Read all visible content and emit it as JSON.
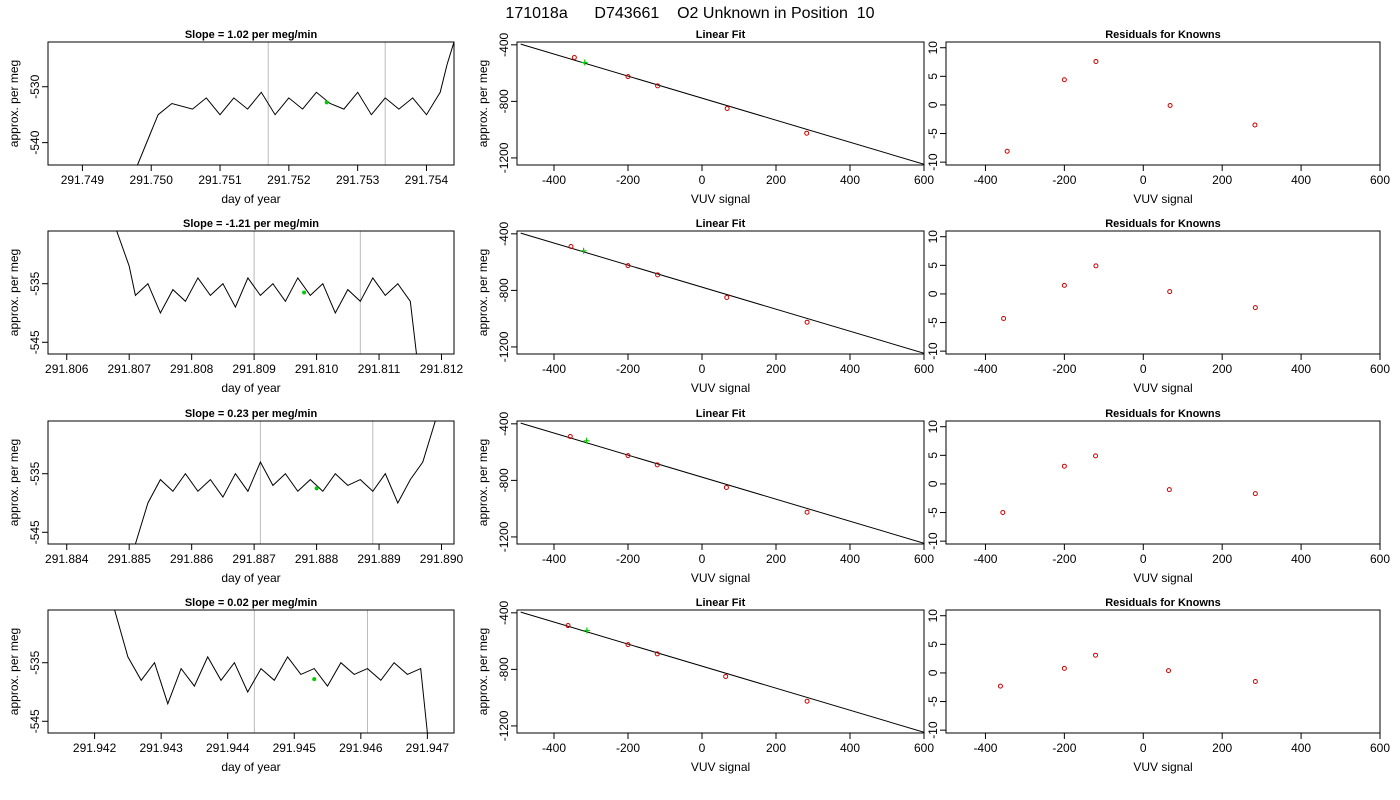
{
  "page_title": "171018a      D743661    O2 Unknown in Position  10",
  "colors": {
    "axis": "#000000",
    "trace": "#000000",
    "vline": "#bbbbbb",
    "known_point": "#cc0000",
    "unknown_point": "#00cc00"
  },
  "chart_data": [
    {
      "type": "line",
      "title": "Slope =  1.02  per meg/min",
      "xlabel": "day of year",
      "ylabel": "approx. per meg",
      "xlim": [
        291.7485,
        291.7544
      ],
      "ylim": [
        -544,
        -522
      ],
      "xticks": [
        "291.749",
        "291.750",
        "291.751",
        "291.752",
        "291.753",
        "291.754"
      ],
      "yticks": [
        "-530",
        "-540"
      ],
      "vlines": [
        291.7517,
        291.7534
      ],
      "point": {
        "x": 291.75255,
        "y": -532.8
      },
      "series": [
        {
          "x": [
            291.7498,
            291.75,
            291.7501,
            291.7503,
            291.7506,
            291.7508,
            291.751,
            291.7512,
            291.7514,
            291.7516,
            291.7518,
            291.752,
            291.7522,
            291.7524,
            291.7526,
            291.7528,
            291.753,
            291.7532,
            291.7534,
            291.7536,
            291.7538,
            291.754,
            291.7542,
            291.7543,
            291.7544
          ],
          "y": [
            -544,
            -538,
            -535,
            -533,
            -534,
            -532,
            -535,
            -532,
            -534,
            -531,
            -535,
            -532,
            -534,
            -531,
            -533,
            -534,
            -531,
            -535,
            -532,
            -534,
            -532,
            -535,
            -531,
            -526,
            -522
          ]
        }
      ]
    },
    {
      "type": "scatter",
      "title": "Linear Fit",
      "xlabel": "VUV signal",
      "ylabel": "approx. per meg",
      "xlim": [
        -500,
        600
      ],
      "ylim": [
        -1250,
        -380
      ],
      "xticks": [
        "-400",
        "-200",
        "0",
        "200",
        "400",
        "600"
      ],
      "yticks": [
        "-400",
        "-800",
        "-1200"
      ],
      "knowns": {
        "x": [
          -345,
          -200,
          -120,
          68,
          283
        ],
        "y": [
          -490,
          -625,
          -690,
          -850,
          -1025
        ]
      },
      "unknown": {
        "x": -317,
        "y": -525
      },
      "fit_line": {
        "x": [
          -490,
          600
        ],
        "y": [
          -395,
          -1245
        ]
      }
    },
    {
      "type": "scatter",
      "title": "Residuals for Knowns",
      "xlabel": "VUV signal",
      "ylabel": "",
      "xlim": [
        -500,
        600
      ],
      "ylim": [
        -10.5,
        11
      ],
      "xticks": [
        "-400",
        "-200",
        "0",
        "200",
        "400",
        "600"
      ],
      "yticks": [
        "10",
        "5",
        "0",
        "-5",
        "-10"
      ],
      "points": {
        "x": [
          -345,
          -200,
          -120,
          68,
          283
        ],
        "y": [
          -8.1,
          4.4,
          7.6,
          -0.1,
          -3.5
        ]
      }
    },
    {
      "type": "line",
      "title": "Slope =  -1.21  per meg/min",
      "xlabel": "day of year",
      "ylabel": "approx. per meg",
      "xlim": [
        291.8057,
        291.8122
      ],
      "ylim": [
        -547,
        -526
      ],
      "xticks": [
        "291.806",
        "291.807",
        "291.808",
        "291.809",
        "291.810",
        "291.811",
        "291.812"
      ],
      "yticks": [
        "-535",
        "-545"
      ],
      "vlines": [
        291.809,
        291.8107
      ],
      "point": {
        "x": 291.8098,
        "y": -536.5
      },
      "series": [
        {
          "x": [
            291.8068,
            291.807,
            291.8071,
            291.8073,
            291.8075,
            291.8077,
            291.8079,
            291.8081,
            291.8083,
            291.8085,
            291.8087,
            291.8089,
            291.8091,
            291.8093,
            291.8095,
            291.8097,
            291.8099,
            291.8101,
            291.8103,
            291.8105,
            291.8107,
            291.8109,
            291.8111,
            291.8113,
            291.8115,
            291.8116
          ],
          "y": [
            -526,
            -532,
            -537,
            -535,
            -540,
            -536,
            -538,
            -534,
            -537,
            -535,
            -539,
            -534,
            -537,
            -535,
            -538,
            -534,
            -537,
            -535,
            -540,
            -536,
            -538,
            -534,
            -537,
            -535,
            -538,
            -547
          ]
        }
      ]
    },
    {
      "type": "scatter",
      "title": "Linear Fit",
      "xlabel": "VUV signal",
      "ylabel": "approx. per meg",
      "xlim": [
        -500,
        600
      ],
      "ylim": [
        -1250,
        -380
      ],
      "xticks": [
        "-400",
        "-200",
        "0",
        "200",
        "400",
        "600"
      ],
      "yticks": [
        "-400",
        "-800",
        "-1200"
      ],
      "knowns": {
        "x": [
          -354,
          -200,
          -120,
          67,
          284
        ],
        "y": [
          -490,
          -625,
          -690,
          -850,
          -1025
        ]
      },
      "unknown": {
        "x": -320,
        "y": -520
      },
      "fit_line": {
        "x": [
          -490,
          600
        ],
        "y": [
          -395,
          -1245
        ]
      }
    },
    {
      "type": "scatter",
      "title": "Residuals for Knowns",
      "xlabel": "VUV signal",
      "ylabel": "",
      "xlim": [
        -500,
        600
      ],
      "ylim": [
        -10.5,
        11
      ],
      "xticks": [
        "-400",
        "-200",
        "0",
        "200",
        "400",
        "600"
      ],
      "yticks": [
        "10",
        "5",
        "0",
        "-5",
        "-10"
      ],
      "points": {
        "x": [
          -354,
          -200,
          -120,
          67,
          284
        ],
        "y": [
          -4.3,
          1.5,
          4.9,
          0.4,
          -2.4
        ]
      }
    },
    {
      "type": "line",
      "title": "Slope =  0.23  per meg/min",
      "xlabel": "day of year",
      "ylabel": "approx. per meg",
      "xlim": [
        291.8837,
        291.8902
      ],
      "ylim": [
        -547,
        -526
      ],
      "xticks": [
        "291.884",
        "291.885",
        "291.886",
        "291.887",
        "291.888",
        "291.889",
        "291.890"
      ],
      "yticks": [
        "-535",
        "-545"
      ],
      "vlines": [
        291.8871,
        291.8889
      ],
      "point": {
        "x": 291.888,
        "y": -537.5
      },
      "series": [
        {
          "x": [
            291.8851,
            291.8853,
            291.8855,
            291.8857,
            291.8859,
            291.8861,
            291.8863,
            291.8865,
            291.8867,
            291.8869,
            291.8871,
            291.8873,
            291.8875,
            291.8877,
            291.8879,
            291.8881,
            291.8883,
            291.8885,
            291.8887,
            291.8889,
            291.8891,
            291.8893,
            291.8895,
            291.8897,
            291.8899
          ],
          "y": [
            -547,
            -540,
            -536,
            -538,
            -535,
            -538,
            -536,
            -539,
            -535,
            -538,
            -533,
            -537,
            -535,
            -538,
            -536,
            -538,
            -535,
            -537,
            -536,
            -538,
            -535,
            -540,
            -536,
            -533,
            -526
          ]
        }
      ]
    },
    {
      "type": "scatter",
      "title": "Linear Fit",
      "xlabel": "VUV signal",
      "ylabel": "approx. per meg",
      "xlim": [
        -500,
        600
      ],
      "ylim": [
        -1250,
        -380
      ],
      "xticks": [
        "-400",
        "-200",
        "0",
        "200",
        "400",
        "600"
      ],
      "yticks": [
        "-400",
        "-800",
        "-1200"
      ],
      "knowns": {
        "x": [
          -356,
          -200,
          -121,
          66,
          284
        ],
        "y": [
          -490,
          -625,
          -690,
          -850,
          -1025
        ]
      },
      "unknown": {
        "x": -312,
        "y": -520
      },
      "fit_line": {
        "x": [
          -490,
          600
        ],
        "y": [
          -395,
          -1245
        ]
      }
    },
    {
      "type": "scatter",
      "title": "Residuals for Knowns",
      "xlabel": "VUV signal",
      "ylabel": "",
      "xlim": [
        -500,
        600
      ],
      "ylim": [
        -10.5,
        11
      ],
      "xticks": [
        "-400",
        "-200",
        "0",
        "200",
        "400",
        "600"
      ],
      "yticks": [
        "10",
        "5",
        "0",
        "-5",
        "-10"
      ],
      "points": {
        "x": [
          -356,
          -200,
          -121,
          66,
          284
        ],
        "y": [
          -5,
          3.1,
          4.9,
          -1,
          -1.7
        ]
      }
    },
    {
      "type": "line",
      "title": "Slope =  0.02  per meg/min",
      "xlabel": "day of year",
      "ylabel": "approx. per meg",
      "xlim": [
        291.9413,
        291.9474
      ],
      "ylim": [
        -547,
        -526
      ],
      "xticks": [
        "291.942",
        "291.943",
        "291.944",
        "291.945",
        "291.946",
        "291.947"
      ],
      "yticks": [
        "-535",
        "-545"
      ],
      "vlines": [
        291.9444,
        291.9461
      ],
      "point": {
        "x": 291.9453,
        "y": -537.8
      },
      "series": [
        {
          "x": [
            291.9423,
            291.9425,
            291.9427,
            291.9429,
            291.9431,
            291.9433,
            291.9435,
            291.9437,
            291.9439,
            291.9441,
            291.9443,
            291.9445,
            291.9447,
            291.9449,
            291.9451,
            291.9453,
            291.9455,
            291.9457,
            291.9459,
            291.9461,
            291.9463,
            291.9465,
            291.9467,
            291.9469,
            291.947
          ],
          "y": [
            -526,
            -534,
            -538,
            -535,
            -542,
            -536,
            -539,
            -534,
            -538,
            -535,
            -540,
            -536,
            -538,
            -534,
            -537,
            -536,
            -539,
            -535,
            -537,
            -536,
            -538,
            -535,
            -537,
            -536,
            -547
          ]
        }
      ]
    },
    {
      "type": "scatter",
      "title": "Linear Fit",
      "xlabel": "VUV signal",
      "ylabel": "approx. per meg",
      "xlim": [
        -500,
        600
      ],
      "ylim": [
        -1250,
        -380
      ],
      "xticks": [
        "-400",
        "-200",
        "0",
        "200",
        "400",
        "600"
      ],
      "yticks": [
        "-400",
        "-800",
        "-1200"
      ],
      "knowns": {
        "x": [
          -362,
          -200,
          -121,
          64,
          284
        ],
        "y": [
          -490,
          -625,
          -690,
          -850,
          -1025
        ]
      },
      "unknown": {
        "x": -311,
        "y": -525
      },
      "fit_line": {
        "x": [
          -490,
          600
        ],
        "y": [
          -395,
          -1245
        ]
      }
    },
    {
      "type": "scatter",
      "title": "Residuals for Knowns",
      "xlabel": "VUV signal",
      "ylabel": "",
      "xlim": [
        -500,
        600
      ],
      "ylim": [
        -10.5,
        11
      ],
      "xticks": [
        "-400",
        "-200",
        "0",
        "200",
        "400",
        "600"
      ],
      "yticks": [
        "10",
        "5",
        "0",
        "-5",
        "-10"
      ],
      "points": {
        "x": [
          -362,
          -200,
          -121,
          64,
          284
        ],
        "y": [
          -2.3,
          0.8,
          3.1,
          0.4,
          -1.5
        ]
      }
    }
  ]
}
